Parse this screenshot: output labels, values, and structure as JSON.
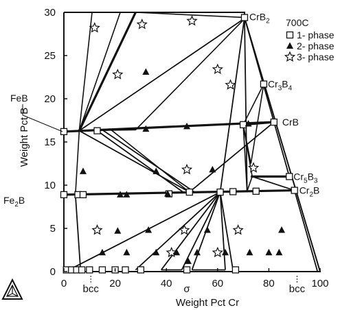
{
  "chart_data": {
    "type": "scatter",
    "title": "",
    "xlabel": "Weight Pct Cr",
    "ylabel": "Weight Pct B",
    "xlim": [
      0,
      100
    ],
    "ylim": [
      0,
      30
    ],
    "x_ticks": [
      "0",
      "20",
      "40",
      "60",
      "80",
      "100"
    ],
    "y_ticks": [
      "0",
      "5",
      "10",
      "15",
      "20",
      "25",
      "30"
    ],
    "grid": false,
    "legend_position": "top-right",
    "legend_title": "700C",
    "legend_entries": [
      "1- phase",
      "2- phase",
      "3- phase"
    ],
    "phase_labels": [
      {
        "name": "FeB",
        "text": "FeB",
        "x": 0,
        "y": 16.2
      },
      {
        "name": "Fe2B",
        "base": "Fe",
        "sub": "2",
        "tail": "B",
        "x": 0,
        "y": 8.9
      },
      {
        "name": "CrB2",
        "base": "CrB",
        "sub": "2",
        "tail": "",
        "x": 70.5,
        "y": 29.4
      },
      {
        "name": "Cr3B4",
        "base": "Cr",
        "sub": "3",
        "tail": "B",
        "sub2": "4",
        "x": 78,
        "y": 21.7
      },
      {
        "name": "CrB",
        "text": "CrB",
        "x": 82,
        "y": 17.3
      },
      {
        "name": "Cr5B3",
        "base": "Cr",
        "sub": "5",
        "tail": "B",
        "sub2": "3",
        "x": 88,
        "y": 11.0
      },
      {
        "name": "Cr2B",
        "base": "Cr",
        "sub": "2",
        "tail": "B",
        "x": 90,
        "y": 9.4
      }
    ],
    "axis_annotations": [
      "bcc",
      "σ",
      "bcc"
    ],
    "series": [
      {
        "name": "1- phase",
        "marker": "open-square",
        "points": [
          [
            0,
            16.2
          ],
          [
            13,
            16.3
          ],
          [
            70,
            17.0
          ],
          [
            78,
            21.7
          ],
          [
            82,
            17.3
          ],
          [
            70.5,
            29.4
          ],
          [
            0,
            8.9
          ],
          [
            5.5,
            8.9
          ],
          [
            7.5,
            8.9
          ],
          [
            41,
            9.0
          ],
          [
            49,
            9.2
          ],
          [
            61,
            9.2
          ],
          [
            66,
            9.25
          ],
          [
            75,
            9.3
          ],
          [
            90,
            9.4
          ],
          [
            88,
            11.0
          ],
          [
            1,
            0.2
          ],
          [
            3,
            0.2
          ],
          [
            5,
            0.2
          ],
          [
            7,
            0.2
          ],
          [
            10,
            0.2
          ],
          [
            15,
            0.2
          ],
          [
            20,
            0.2
          ],
          [
            24,
            0.2
          ],
          [
            30,
            0.2
          ],
          [
            48,
            0.2
          ],
          [
            67,
            0.2
          ]
        ]
      },
      {
        "name": "2- phase",
        "marker": "filled-triangle",
        "points": [
          [
            32,
            23.1
          ],
          [
            32,
            16.5
          ],
          [
            48,
            16.8
          ],
          [
            72,
            17.1
          ],
          [
            7.5,
            11.6
          ],
          [
            36,
            11.6
          ],
          [
            58,
            11.8
          ],
          [
            22,
            8.9
          ],
          [
            24.5,
            8.9
          ],
          [
            40.5,
            9.0
          ],
          [
            21,
            4.7
          ],
          [
            33,
            4.8
          ],
          [
            56,
            4.8
          ],
          [
            85,
            4.8
          ],
          [
            15,
            2.2
          ],
          [
            24.5,
            2.2
          ],
          [
            36,
            2.2
          ],
          [
            44,
            2.2
          ],
          [
            52,
            2.2
          ],
          [
            63,
            2.2
          ],
          [
            72.5,
            2.2
          ],
          [
            80,
            2.2
          ],
          [
            84,
            2.2
          ],
          [
            48.5,
            1.2
          ]
        ]
      },
      {
        "name": "3- phase",
        "marker": "open-star",
        "points": [
          [
            12,
            28.2
          ],
          [
            30.5,
            28.6
          ],
          [
            50,
            29.0
          ],
          [
            21,
            22.8
          ],
          [
            60,
            23.4
          ],
          [
            65,
            21.6
          ],
          [
            48,
            11.8
          ],
          [
            74,
            12.0
          ],
          [
            13,
            4.8
          ],
          [
            47,
            4.8
          ],
          [
            68,
            4.8
          ],
          [
            42,
            2.2
          ],
          [
            60,
            2.2
          ]
        ]
      }
    ],
    "tie_triangles": [
      [
        [
          6,
          16.3
        ],
        [
          11,
          30
        ],
        [
          22,
          30
        ]
      ],
      [
        [
          6,
          16.3
        ],
        [
          28,
          30
        ],
        [
          71,
          29.4
        ]
      ],
      [
        [
          6,
          16.3
        ],
        [
          28,
          16.4
        ],
        [
          71,
          29.4
        ]
      ],
      [
        [
          6,
          16.3
        ],
        [
          18,
          16.5
        ],
        [
          49,
          9.2
        ]
      ],
      [
        [
          6,
          16.3
        ],
        [
          4.5,
          8.9
        ],
        [
          49,
          9.2
        ]
      ],
      [
        [
          70,
          17.0
        ],
        [
          71.5,
          9.3
        ],
        [
          73.5,
          11.0
        ]
      ],
      [
        [
          70,
          17.0
        ],
        [
          78,
          21.7
        ],
        [
          73,
          12.5
        ]
      ]
    ],
    "tie_lines": [
      [
        [
          0,
          16.2
        ],
        [
          82,
          17.3
        ]
      ],
      [
        [
          0,
          16.2
        ],
        [
          6,
          16.3
        ]
      ],
      [
        [
          0,
          8.9
        ],
        [
          90,
          9.4
        ]
      ],
      [
        [
          73,
          11.0
        ],
        [
          88,
          11.0
        ]
      ],
      [
        [
          70.5,
          29.4
        ],
        [
          82,
          17.3
        ]
      ],
      [
        [
          82,
          17.3
        ],
        [
          88,
          11.0
        ]
      ],
      [
        [
          73.5,
          11.0
        ],
        [
          90,
          9.4
        ]
      ],
      [
        [
          70.5,
          29.4
        ],
        [
          61,
          9.2
        ]
      ],
      [
        [
          70.5,
          29.4
        ],
        [
          71.5,
          9.3
        ]
      ],
      [
        [
          13,
          16.3
        ],
        [
          47,
          9.1
        ]
      ],
      [
        [
          15,
          16.4
        ],
        [
          51,
          9.2
        ]
      ],
      [
        [
          49,
          9.2
        ],
        [
          82,
          17.3
        ]
      ],
      [
        [
          4.5,
          8.9
        ],
        [
          6.5,
          0.2
        ]
      ],
      [
        [
          61,
          9.2
        ],
        [
          2,
          0.2
        ]
      ],
      [
        [
          61,
          9.2
        ],
        [
          28,
          0.2
        ]
      ],
      [
        [
          61,
          9.2
        ],
        [
          38,
          0.2
        ]
      ],
      [
        [
          61,
          9.2
        ],
        [
          46,
          0.2
        ]
      ],
      [
        [
          61,
          9.2
        ],
        [
          50,
          0.2
        ]
      ],
      [
        [
          61,
          9.2
        ],
        [
          63,
          0.2
        ]
      ],
      [
        [
          61,
          9.2
        ],
        [
          66,
          0.2
        ]
      ],
      [
        [
          90,
          9.4
        ],
        [
          99,
          0
        ]
      ],
      [
        [
          38,
          0.2
        ],
        [
          46,
          0.2
        ]
      ],
      [
        [
          50,
          0.2
        ],
        [
          63,
          0.2
        ]
      ]
    ]
  }
}
